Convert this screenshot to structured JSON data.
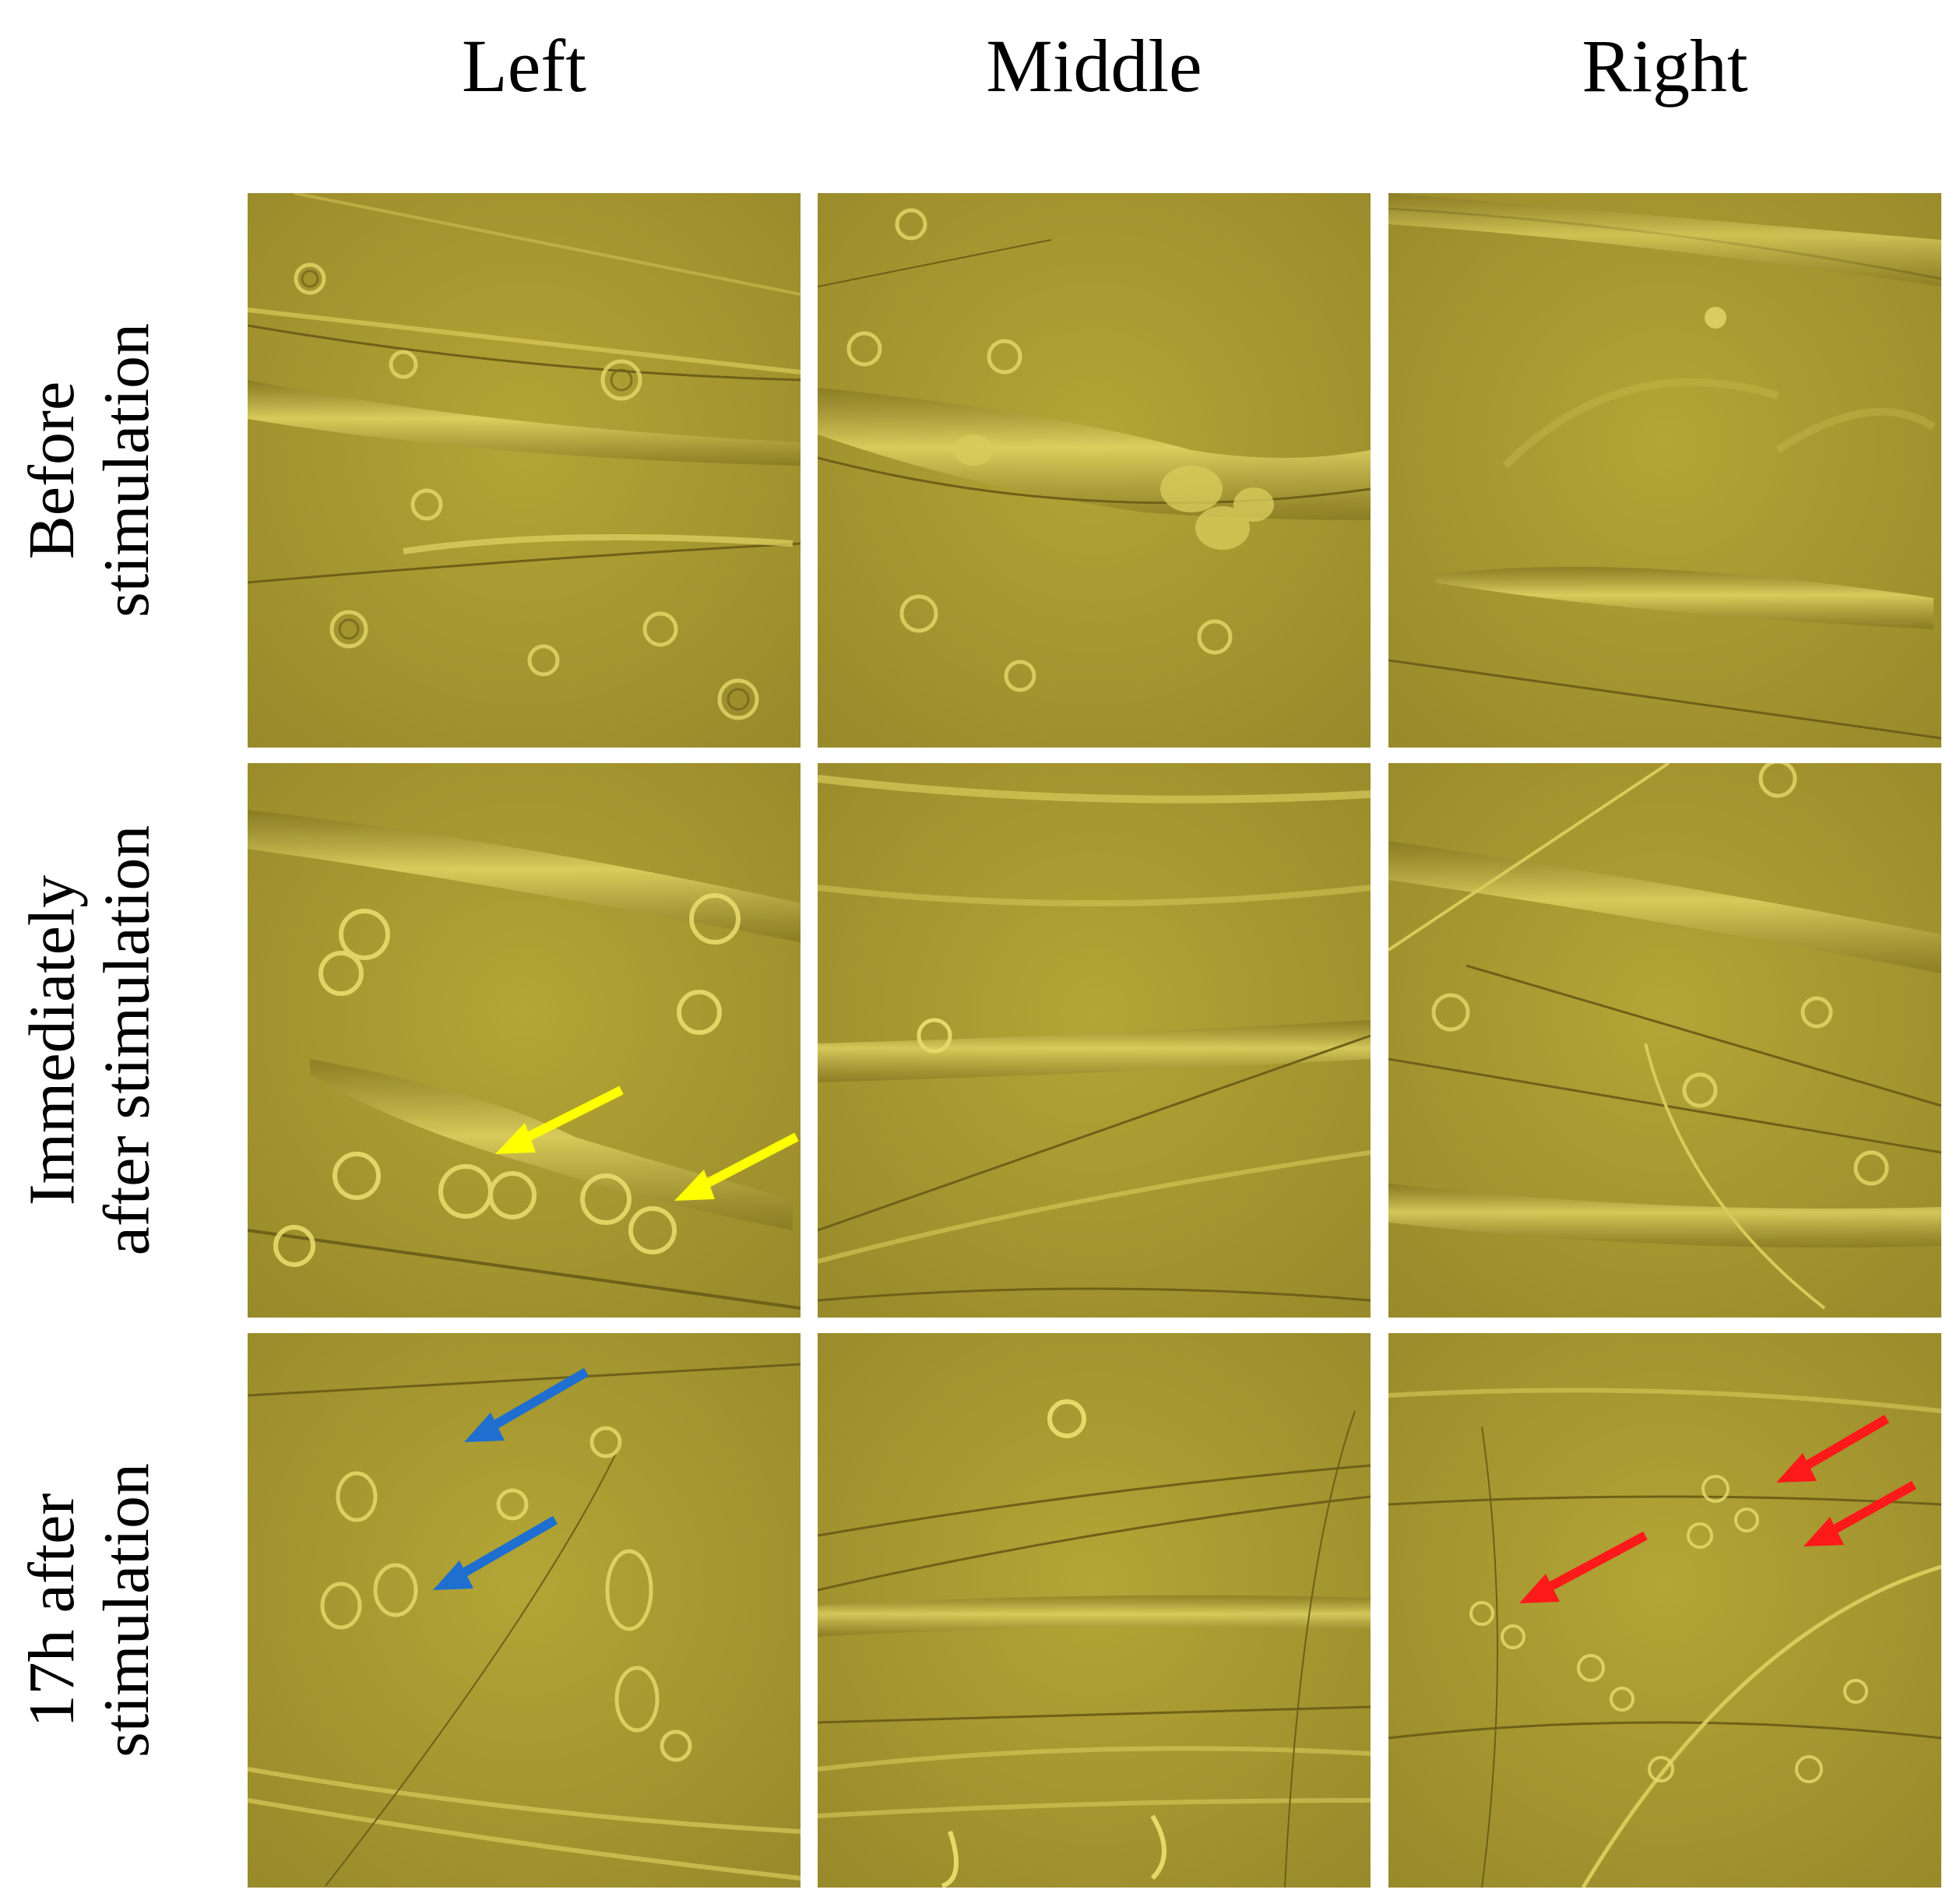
{
  "columns": [
    "Left",
    "Middle",
    "Right"
  ],
  "rows": [
    {
      "line1": "Before",
      "line2": "stimulation"
    },
    {
      "line1": "Immediately",
      "line2": "after stimulation"
    },
    {
      "line1": "17h after",
      "line2": "stimulation"
    }
  ],
  "colors": {
    "background_tint": "#a89a2c",
    "yellow_arrow": "#ffff00",
    "blue_arrow": "#1e6fd0",
    "red_arrow": "#ff1a1a"
  },
  "annotations": {
    "yellow_arrows": {
      "panel": "immediately-left",
      "count": 2
    },
    "blue_arrows": {
      "panel": "17h-left",
      "count": 2
    },
    "red_arrows": {
      "panel": "17h-right",
      "count": 3
    }
  }
}
